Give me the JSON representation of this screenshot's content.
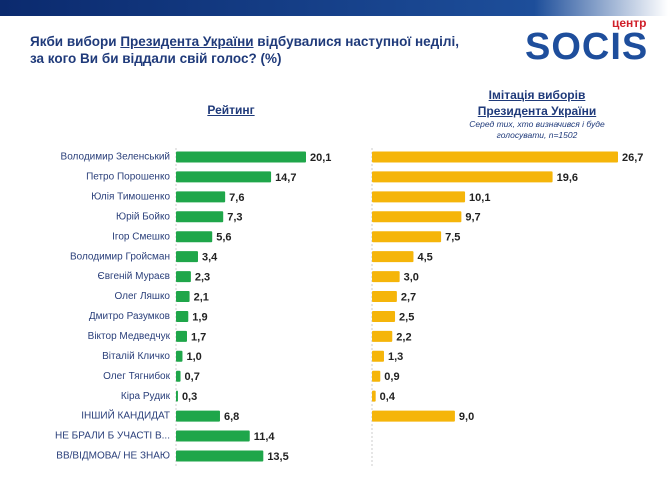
{
  "chart_data": {
    "type": "bar",
    "title_parts": [
      "Якби вибори ",
      "Президента України",
      " відбувалися наступної неділі, за кого Ви би віддали свій голос? (%)"
    ],
    "logo": {
      "small": "центр",
      "big": "SOCIS"
    },
    "categories": [
      "Володимир Зеленський",
      "Петро Порошенко",
      "Юлія Тимошенко",
      "Юрій Бойко",
      "Ігор Смешко",
      "Володимир Гройсман",
      "Євгеній Мураєв",
      "Олег Ляшко",
      "Дмитро Разумков",
      "Віктор Медведчук",
      "Віталій Кличко",
      "Олег Тягнибок",
      "Кіра Рудик",
      "ІНШИЙ КАНДИДАТ",
      "НЕ БРАЛИ Б УЧАСТІ В...",
      "ВВ/ВІДМОВА/ НЕ ЗНАЮ"
    ],
    "series": [
      {
        "name": "Рейтинг",
        "color": "#1fa64a",
        "values": [
          20.1,
          14.7,
          7.6,
          7.3,
          5.6,
          3.4,
          2.3,
          2.1,
          1.9,
          1.7,
          1.0,
          0.7,
          0.3,
          6.8,
          11.4,
          13.5
        ],
        "value_labels": [
          "20,1",
          "14,7",
          "7,6",
          "7,3",
          "5,6",
          "3,4",
          "2,3",
          "2,1",
          "1,9",
          "1,7",
          "1,0",
          "0,7",
          "0,3",
          "6,8",
          "11,4",
          "13,5"
        ]
      },
      {
        "name": "Імітація виборів Президента України",
        "subtitle": "Серед тих, хто визначився і буде голосувати, n=1502",
        "color": "#f5b50a",
        "values": [
          26.7,
          19.6,
          10.1,
          9.7,
          7.5,
          4.5,
          3.0,
          2.7,
          2.5,
          2.2,
          1.3,
          0.9,
          0.4,
          9.0,
          null,
          null
        ],
        "value_labels": [
          "26,7",
          "19,6",
          "10,1",
          "9,7",
          "7,5",
          "4,5",
          "3,0",
          "2,7",
          "2,5",
          "2,2",
          "1,3",
          "0,9",
          "0,4",
          "9,0",
          null,
          null
        ]
      }
    ]
  }
}
